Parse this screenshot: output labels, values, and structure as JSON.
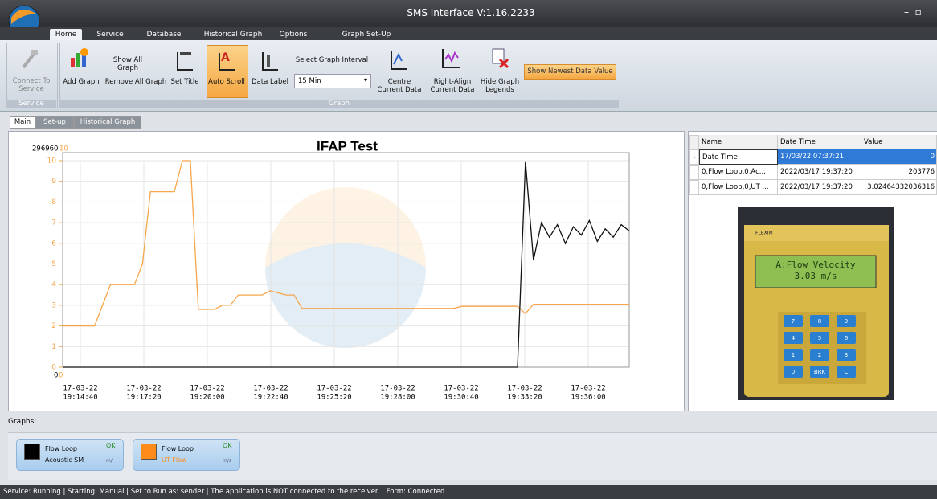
{
  "window": {
    "title": "SMS Interface V:1.16.2233"
  },
  "ribbon_tabs": [
    "Home",
    "Service",
    "Database",
    "Historical Graph",
    "Options",
    "Graph Set-Up"
  ],
  "ribbon": {
    "connect": "Connect To Service",
    "service_group": "Service",
    "add_graph": "Add Graph",
    "show_all": "Show All Graph",
    "remove_all": "Remove All Graph",
    "set_title": "Set Title",
    "auto_scroll": "Auto Scroll",
    "data_label": "Data Label",
    "interval_label": "Select Graph Interval",
    "interval_value": "15 Min",
    "centre": "Centre Current Data",
    "right_align": "Right-Align Current Data",
    "hide_legends": "Hide Graph Legends",
    "show_newest": "Show Newest Data Value",
    "graph_group": "Graph"
  },
  "view_tabs": [
    "Main",
    "Set-up",
    "Historical Graph"
  ],
  "chart": {
    "type": "line",
    "title": "IFAP Test",
    "ylim": [
      0,
      10
    ],
    "yticks": [
      0,
      1,
      2,
      3,
      4,
      5,
      6,
      7,
      8,
      9,
      10
    ],
    "y2lim": [
      0,
      296960
    ],
    "grid": true,
    "xtick_labels": [
      {
        "date": "17-03-22",
        "time": "19:14:40"
      },
      {
        "date": "17-03-22",
        "time": "19:17:20"
      },
      {
        "date": "17-03-22",
        "time": "19:20:00"
      },
      {
        "date": "17-03-22",
        "time": "19:22:40"
      },
      {
        "date": "17-03-22",
        "time": "19:25:20"
      },
      {
        "date": "17-03-22",
        "time": "19:28:00"
      },
      {
        "date": "17-03-22",
        "time": "19:30:40"
      },
      {
        "date": "17-03-22",
        "time": "19:33:20"
      },
      {
        "date": "17-03-22",
        "time": "19:36:00"
      }
    ],
    "series": [
      {
        "color": "#f7a54a",
        "values": [
          2,
          2,
          2,
          2,
          2,
          3,
          4,
          4,
          4,
          4,
          5,
          8.5,
          8.5,
          8.5,
          8.5,
          10,
          10,
          2.8,
          2.8,
          2.8,
          3,
          3,
          3.5,
          3.5,
          3.5,
          3.5,
          3.7,
          3.6,
          3.5,
          3.5,
          2.85,
          2.85,
          2.85,
          2.85,
          2.85,
          2.85,
          2.85,
          2.85,
          2.85,
          2.85,
          2.85,
          2.85,
          2.85,
          2.85,
          2.85,
          2.85,
          2.85,
          2.85,
          2.85,
          2.85,
          2.95,
          2.95,
          2.95,
          2.95,
          2.95,
          2.95,
          2.95,
          2.95,
          2.6,
          3.05,
          3.05,
          3.05,
          3.05,
          3.05,
          3.05,
          3.05,
          3.05,
          3.05,
          3.05,
          3.05,
          3.05,
          3.05
        ]
      },
      {
        "color": "#111111",
        "axis": "y2",
        "values": [
          0,
          0,
          0,
          0,
          0,
          0,
          0,
          0,
          0,
          0,
          0,
          0,
          0,
          0,
          0,
          0,
          0,
          0,
          0,
          0,
          0,
          0,
          0,
          0,
          0,
          0,
          0,
          0,
          0,
          0,
          0,
          0,
          0,
          0,
          0,
          0,
          0,
          0,
          0,
          0,
          0,
          0,
          0,
          0,
          0,
          0,
          0,
          0,
          0,
          0,
          0,
          0,
          0,
          0,
          0,
          0,
          0,
          0,
          296000,
          154000,
          208000,
          187000,
          205000,
          178000,
          202000,
          190000,
          211000,
          181000,
          199000,
          187000,
          205000,
          196000
        ]
      }
    ]
  },
  "grid": {
    "columns": [
      "Name",
      "Date Time",
      "Value"
    ],
    "rows": [
      [
        "Date Time",
        "17/03/22 07:37:21",
        "0"
      ],
      [
        "0,Flow Loop,0,Ac...",
        "2022/03/17 19:37:20",
        "203776"
      ],
      [
        "0,Flow Loop,0,UT ...",
        "2022/03/17 19:37:20",
        "3.02464332036316"
      ]
    ]
  },
  "photo": {
    "brand": "FLEXIM",
    "lcd": [
      "A:Flow Velocity",
      "3.03   m/s"
    ],
    "keys": [
      "7",
      "8",
      "9",
      "4",
      "5",
      "6",
      "1",
      "2",
      "3",
      "0",
      "BRK",
      "C"
    ]
  },
  "graphs_label": "Graphs:",
  "graph_cards": [
    {
      "line1": "Flow Loop",
      "line2": "Acoustic SM",
      "status": "OK",
      "unit": "m/",
      "color": "#000000"
    },
    {
      "line1": "Flow Loop",
      "line2": "UT Flow",
      "status": "OK",
      "unit": "m/s",
      "color": "#ff8c1a"
    }
  ],
  "status_bar": "Service: Running | Starting: Manual | Set to Run as: sender | The application is NOT connected to the receiver. | Form: Connected"
}
